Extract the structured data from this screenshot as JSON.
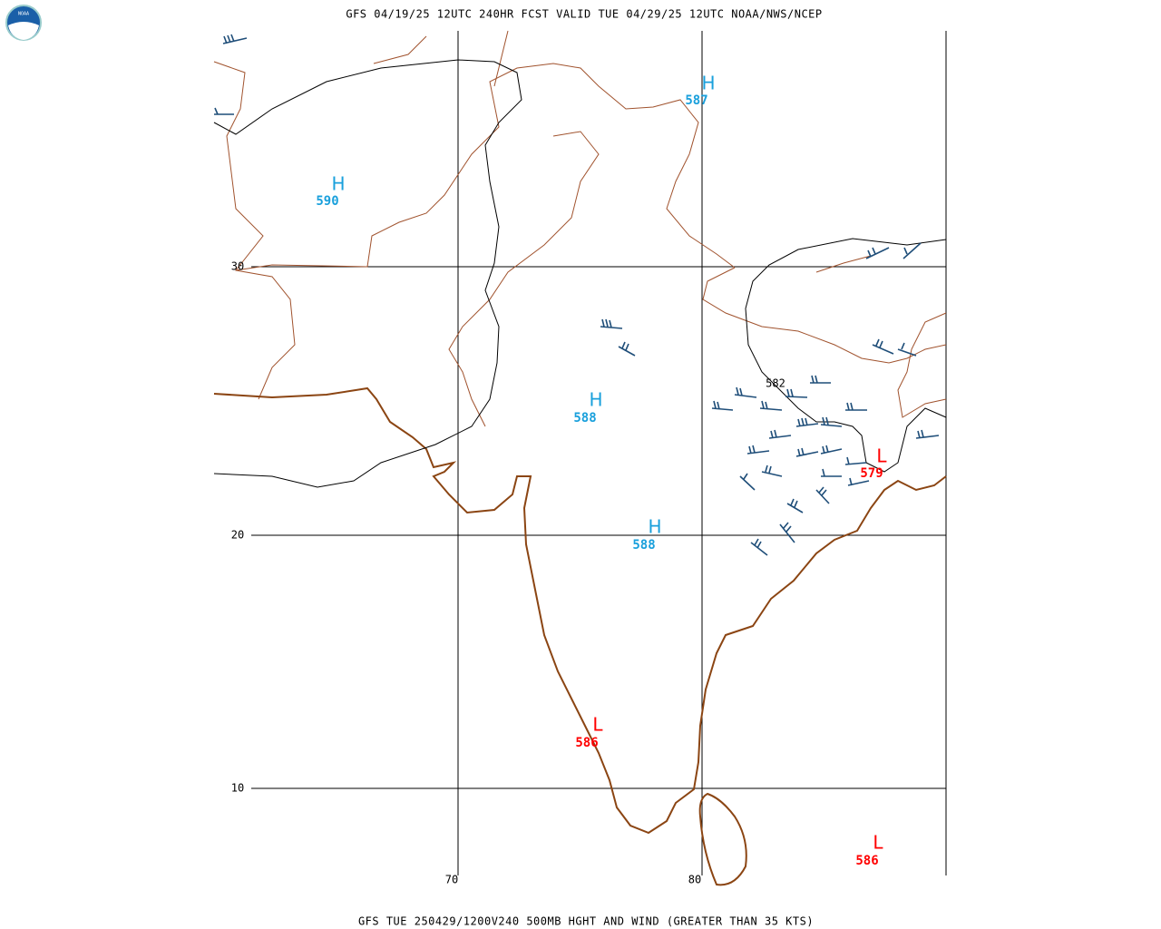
{
  "header": {
    "title": "GFS 04/19/25 12UTC 240HR FCST VALID TUE 04/29/25 12UTC NOAA/NWS/NCEP"
  },
  "footer": {
    "caption": "GFS TUE 250429/1200V240 500MB HGHT AND WIND (GREATER THAN 35 KTS)"
  },
  "latitude_labels": [
    "30",
    "20",
    "10"
  ],
  "longitude_labels": [
    "70",
    "80"
  ],
  "centers": [
    {
      "type": "H",
      "value": 587
    },
    {
      "type": "H",
      "value": 590
    },
    {
      "type": "H",
      "value": 588
    },
    {
      "type": "H",
      "value": 588
    },
    {
      "type": "L",
      "value": 579
    },
    {
      "type": "L",
      "value": 586
    },
    {
      "type": "L",
      "value": 586
    }
  ],
  "contour_labels": [
    582
  ]
}
